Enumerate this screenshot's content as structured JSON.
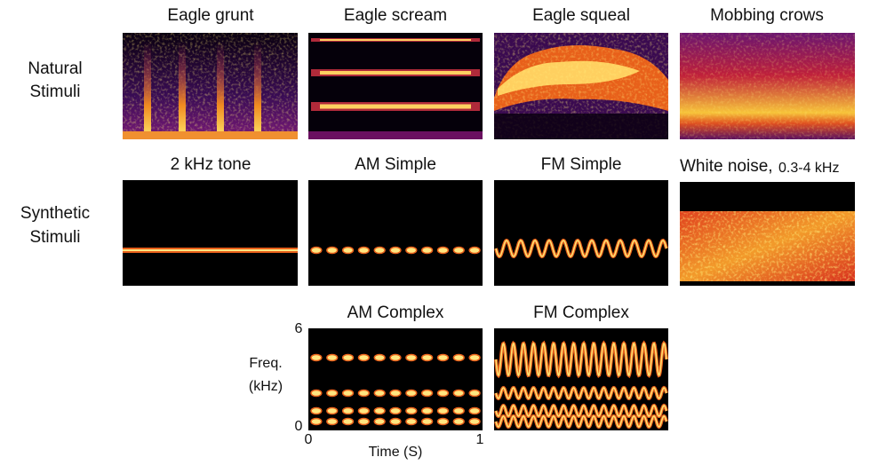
{
  "rows": [
    {
      "label_lines": [
        "Natural",
        "Stimuli"
      ],
      "panels": [
        {
          "title": "Eagle grunt"
        },
        {
          "title": "Eagle scream"
        },
        {
          "title": "Eagle squeal"
        },
        {
          "title": "Mobbing crows"
        }
      ]
    },
    {
      "label_lines": [
        "Synthetic",
        "Stimuli"
      ],
      "panels": [
        {
          "title": "2 kHz tone"
        },
        {
          "title": "AM Simple"
        },
        {
          "title": "FM Simple"
        },
        {
          "title": "White noise,",
          "title_note": "0.3-4 kHz"
        }
      ]
    },
    {
      "panels": [
        {
          "title": "AM Complex"
        },
        {
          "title": "FM Complex"
        }
      ]
    }
  ],
  "axes": {
    "y_label_lines": [
      "Freq.",
      "(kHz)"
    ],
    "y_ticks": [
      6,
      0
    ],
    "x_label": "Time (S)",
    "x_ticks": [
      0,
      1
    ]
  }
}
